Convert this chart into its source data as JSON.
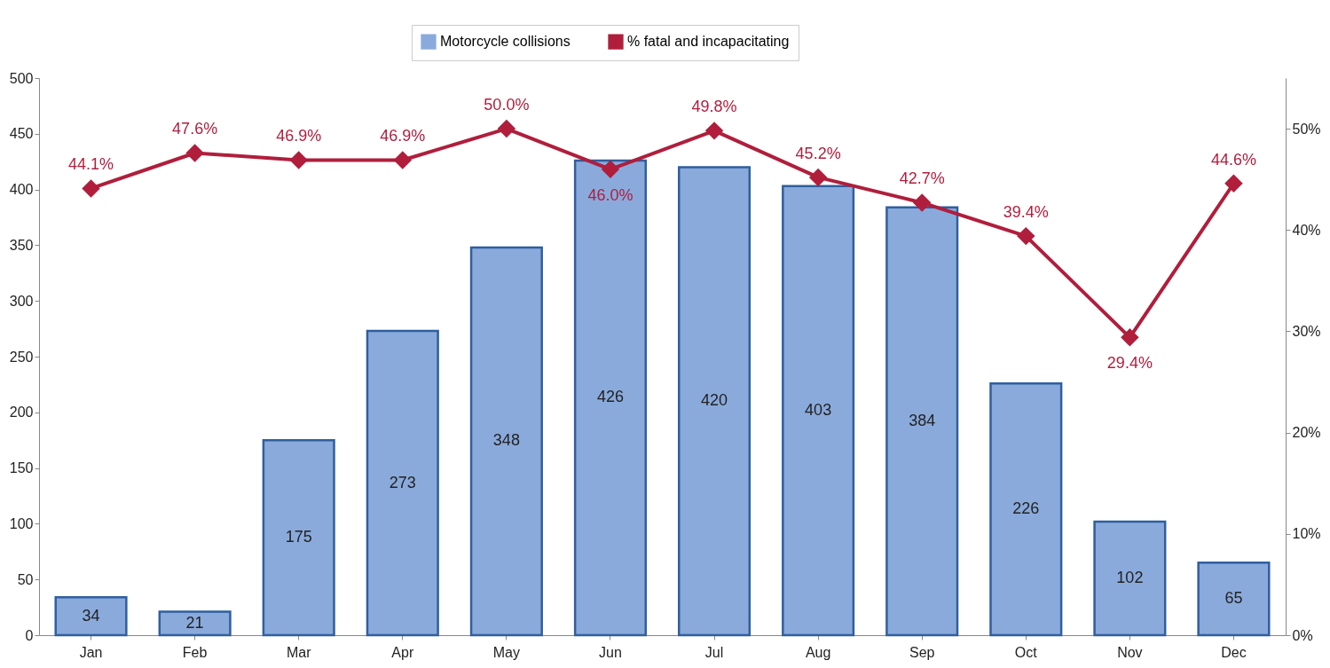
{
  "chart_data": {
    "type": "bar",
    "categories": [
      "Jan",
      "Feb",
      "Mar",
      "Apr",
      "May",
      "Jun",
      "Jul",
      "Aug",
      "Sep",
      "Oct",
      "Nov",
      "Dec"
    ],
    "series": [
      {
        "name": "Motorcycle collisions",
        "color": "#8aaadc",
        "values": [
          34,
          21,
          175,
          273,
          348,
          426,
          420,
          403,
          384,
          226,
          102,
          65
        ],
        "value_labels": [
          "34",
          "21",
          "175",
          "273",
          "348",
          "426",
          "420",
          "403",
          "384",
          "226",
          "102",
          "65"
        ]
      },
      {
        "name": "% fatal and incapacitating",
        "type": "line",
        "axis": "y2",
        "color": "#b01e3c",
        "values": [
          44.1,
          47.6,
          46.9,
          46.9,
          50.0,
          46.0,
          49.8,
          45.2,
          42.7,
          39.4,
          29.4,
          44.6
        ],
        "value_labels": [
          "44.1%",
          "47.6%",
          "46.9%",
          "46.9%",
          "50.0%",
          "46.0%",
          "49.8%",
          "45.2%",
          "42.7%",
          "39.4%",
          "29.4%",
          "44.6%"
        ]
      }
    ],
    "ylim": [
      0,
      500
    ],
    "yticks": [
      0,
      50,
      100,
      150,
      200,
      250,
      300,
      350,
      400,
      450,
      500
    ],
    "y2lim": [
      0,
      55
    ],
    "y2ticks": [
      {
        "value": 0,
        "label": "0%"
      },
      {
        "value": 10,
        "label": "10%"
      },
      {
        "value": 20,
        "label": "20%"
      },
      {
        "value": 30,
        "label": "30%"
      },
      {
        "value": 40,
        "label": "40%"
      },
      {
        "value": 50,
        "label": "50%"
      }
    ],
    "legend": "top",
    "marker": "diamond",
    "line_style": "solid",
    "grid": false
  }
}
